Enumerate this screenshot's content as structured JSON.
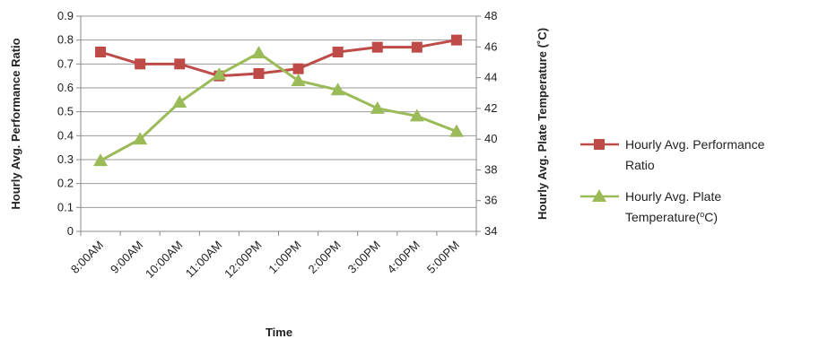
{
  "chart_data": {
    "type": "line",
    "categories": [
      "8:00AM",
      "9:00AM",
      "10:00AM",
      "11:00AM",
      "12:00PM",
      "1:00PM",
      "2:00PM",
      "3:00PM",
      "4:00PM",
      "5:00PM"
    ],
    "series": [
      {
        "name": "Hourly Avg. Performance Ratio",
        "axis": "left",
        "color": "#be4b48",
        "marker": "square",
        "values": [
          0.75,
          0.7,
          0.7,
          0.65,
          0.66,
          0.68,
          0.75,
          0.77,
          0.77,
          0.8
        ]
      },
      {
        "name": "Hourly Avg. Plate Temperature (°C)",
        "axis": "right",
        "color": "#9bbb59",
        "marker": "triangle",
        "values": [
          38.6,
          40.0,
          42.4,
          44.2,
          45.6,
          43.8,
          43.2,
          42.0,
          41.5,
          40.5
        ]
      }
    ],
    "xlabel": "Time",
    "ylabel": "Hourly Avg. Performance Ratio",
    "y2label": "Hourly Avg. Plate Temperature (˚C)",
    "ylim": [
      0,
      0.9
    ],
    "y2lim": [
      34,
      48
    ],
    "yticks": [
      "0",
      "0.1",
      "0.2",
      "0.3",
      "0.4",
      "0.5",
      "0.6",
      "0.7",
      "0.8",
      "0.9"
    ],
    "y2ticks": [
      "34",
      "36",
      "38",
      "40",
      "42",
      "44",
      "46",
      "48"
    ],
    "grid": true,
    "legend": {
      "placement": "right",
      "entries": [
        {
          "lines": [
            "Hourly Avg. Performance",
            "Ratio"
          ]
        },
        {
          "lines": [
            "Hourly Avg. Plate",
            "Temperature(",
            "o",
            "C)"
          ]
        }
      ]
    }
  }
}
